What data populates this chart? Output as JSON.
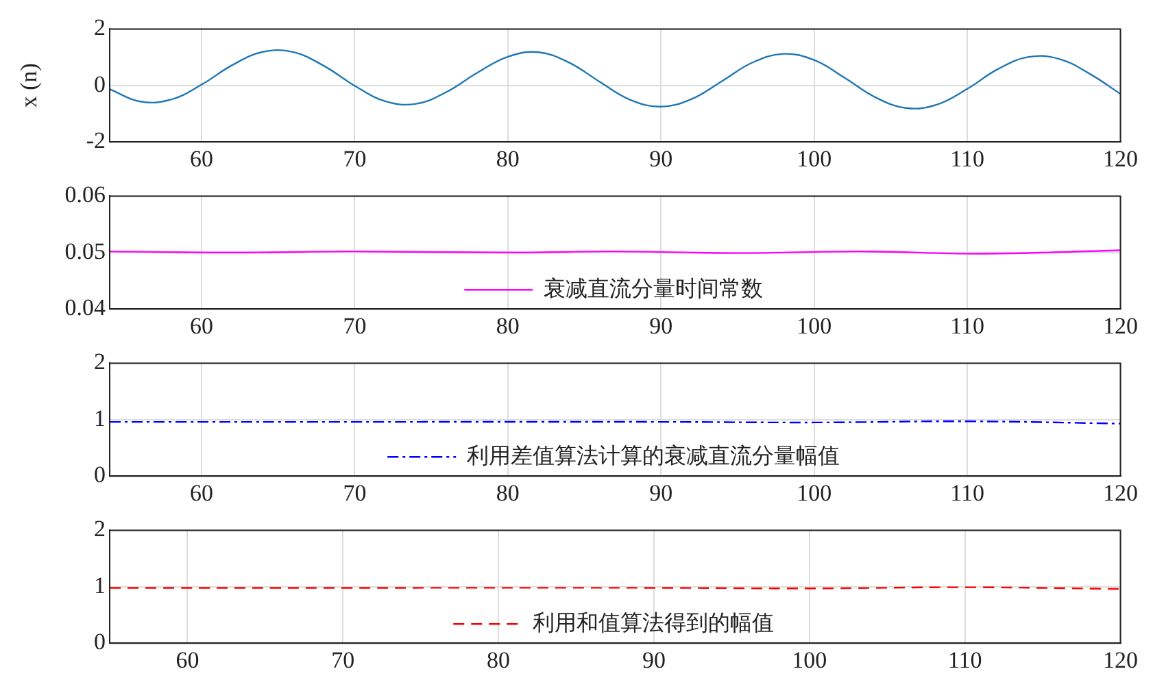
{
  "chart_data": [
    {
      "type": "line",
      "ylabel": "x (n)",
      "x": [
        54,
        56,
        58,
        60,
        62,
        64,
        66,
        68,
        70,
        72,
        74,
        76,
        78,
        80,
        82,
        84,
        86,
        88,
        90,
        92,
        94,
        96,
        98,
        100,
        102,
        104,
        106,
        108,
        110,
        112,
        114,
        116,
        118,
        120
      ],
      "series": [
        {
          "color": "#1f77b4",
          "values": [
            -0.13,
            -0.57,
            -0.5,
            0.03,
            0.72,
            1.19,
            1.18,
            0.69,
            -0.01,
            -0.56,
            -0.65,
            -0.23,
            0.45,
            1.02,
            1.18,
            0.81,
            0.13,
            -0.51,
            -0.75,
            -0.48,
            0.16,
            0.82,
            1.12,
            0.9,
            0.27,
            -0.42,
            -0.8,
            -0.68,
            -0.12,
            0.58,
            1.01,
            0.94,
            0.41,
            -0.3
          ]
        }
      ],
      "xlim": [
        54,
        120
      ],
      "xticks": [
        60,
        70,
        80,
        90,
        100,
        110,
        120
      ],
      "ylim": [
        -2,
        2
      ],
      "yticks": [
        -2,
        0,
        2
      ],
      "grid": true,
      "legend": false,
      "line_style": "solid",
      "marker": "none"
    },
    {
      "type": "line",
      "x": [
        54,
        62,
        70,
        80,
        87,
        95,
        103,
        111,
        120
      ],
      "series": [
        {
          "name": "衰减直流分量时间常数",
          "color": "#ff00ff",
          "values": [
            0.0502,
            0.05,
            0.0502,
            0.05,
            0.0502,
            0.0499,
            0.0502,
            0.0498,
            0.0504
          ],
          "line_style": "solid"
        }
      ],
      "xlim": [
        54,
        120
      ],
      "xticks": [
        60,
        70,
        80,
        90,
        100,
        110,
        120
      ],
      "ylim": [
        0.04,
        0.06
      ],
      "yticks": [
        0.04,
        0.05,
        0.06
      ],
      "grid": true,
      "legend": "bottom",
      "marker": "none"
    },
    {
      "type": "line",
      "x": [
        54,
        70,
        90,
        100,
        110,
        120
      ],
      "series": [
        {
          "name": "利用差值算法计算的衰减直流分量幅值",
          "color": "#0000ff",
          "values": [
            0.96,
            0.96,
            0.96,
            0.95,
            0.97,
            0.93
          ],
          "line_style": "dashdot"
        }
      ],
      "xlim": [
        54,
        120
      ],
      "xticks": [
        60,
        70,
        80,
        90,
        100,
        110,
        120
      ],
      "ylim": [
        0,
        2
      ],
      "yticks": [
        0,
        1,
        2
      ],
      "grid": true,
      "legend": "bottom",
      "marker": "none"
    },
    {
      "type": "line",
      "x": [
        55,
        70,
        90,
        100,
        110,
        120
      ],
      "series": [
        {
          "name": "利用和值算法得到的幅值",
          "color": "#ff0000",
          "values": [
            0.98,
            0.98,
            0.98,
            0.97,
            0.99,
            0.96
          ],
          "line_style": "dashed"
        }
      ],
      "xlim": [
        55,
        120
      ],
      "xticks": [
        60,
        70,
        80,
        90,
        100,
        110,
        120
      ],
      "ylim": [
        0,
        2
      ],
      "yticks": [
        0,
        1,
        2
      ],
      "grid": true,
      "legend": "bottom",
      "marker": "none"
    }
  ]
}
